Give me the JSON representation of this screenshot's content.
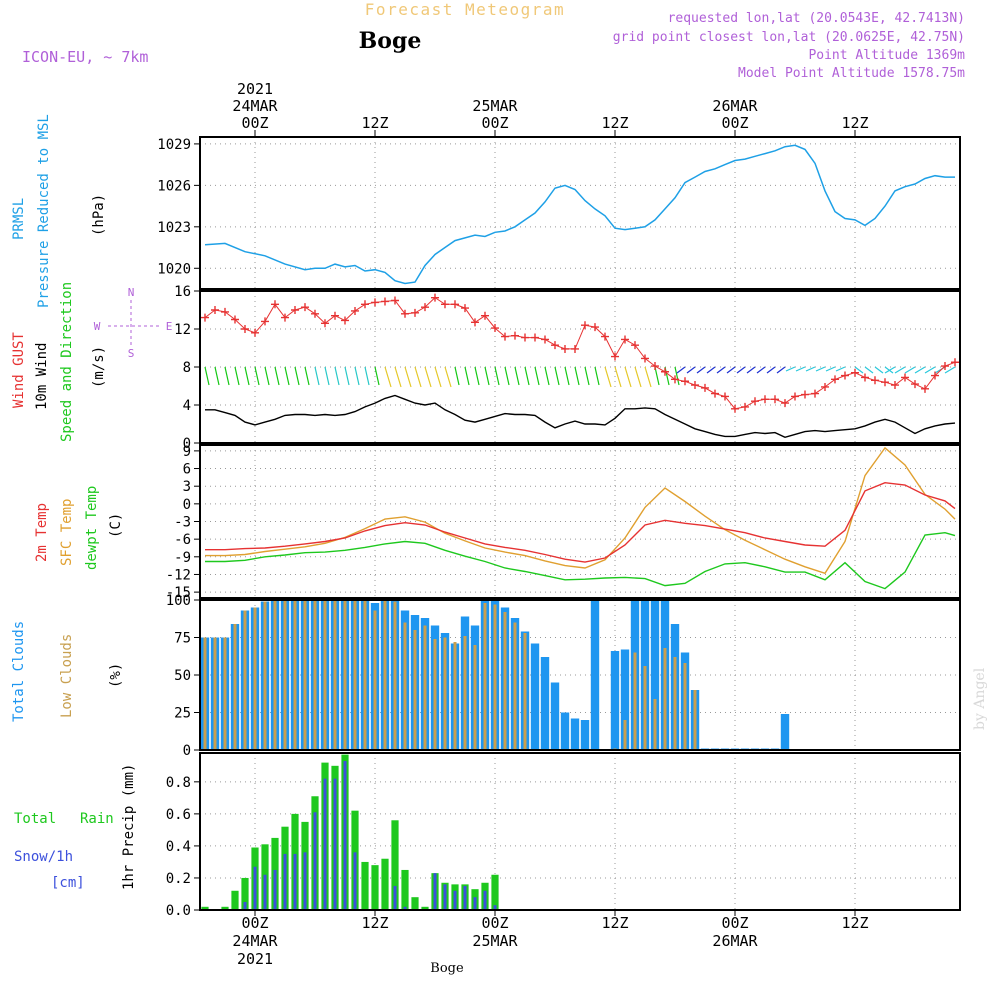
{
  "header": {
    "title": "Forecast Meteogram",
    "location": "Boge",
    "model": "ICON-EU, ~ 7km",
    "requested": "requested lon,lat (20.0543E, 42.7413N)",
    "grid_point": "grid point closest lon,lat (20.0625E, 42.75N)",
    "point_altitude": "Point Altitude 1369m",
    "model_altitude": "Model Point Altitude 1578.75m",
    "credit": "by Angel",
    "footer": "Boge"
  },
  "time_axis": {
    "top_labels": [
      {
        "lines": [
          "2021",
          "24MAR",
          "00Z"
        ],
        "t": 0
      },
      {
        "lines": [
          "12Z"
        ],
        "t": 12
      },
      {
        "lines": [
          "25MAR",
          "00Z"
        ],
        "t": 24
      },
      {
        "lines": [
          "12Z"
        ],
        "t": 36
      },
      {
        "lines": [
          "26MAR",
          "00Z"
        ],
        "t": 48
      },
      {
        "lines": [
          "12Z"
        ],
        "t": 60
      }
    ],
    "bottom_labels": [
      {
        "lines": [
          "00Z",
          "24MAR",
          "2021"
        ],
        "t": 0
      },
      {
        "lines": [
          "12Z"
        ],
        "t": 12
      },
      {
        "lines": [
          "00Z",
          "25MAR"
        ],
        "t": 24
      },
      {
        "lines": [
          "12Z"
        ],
        "t": 36
      },
      {
        "lines": [
          "00Z",
          "26MAR"
        ],
        "t": 48
      },
      {
        "lines": [
          "12Z"
        ],
        "t": 60
      }
    ],
    "t_start": -5.5,
    "t_end": 70.5
  },
  "labels": {
    "pressure": {
      "line1": "PRMSL",
      "line2": "Pressure Reduced to MSL",
      "unit": "(hPa)"
    },
    "wind": {
      "gust": "Wind GUST",
      "wind10": "10m Wind",
      "dir": "Speed and Direction",
      "unit": "(m/s)",
      "compass_n": "N",
      "compass_s": "S",
      "compass_w": "W",
      "compass_e": "E"
    },
    "temp": {
      "t2m": "2m Temp",
      "sfc": "SFC Temp",
      "dew": "dewpt Temp",
      "unit": "(C)"
    },
    "clouds": {
      "total": "Total Clouds",
      "low": "Low Clouds",
      "unit": "(%)"
    },
    "precip": {
      "rain1": "Total",
      "rain2": "Rain",
      "snow": "Snow/1h",
      "snow_unit": "[cm]",
      "ylabel": "1hr Precip (mm)"
    }
  },
  "colors": {
    "pressure": "#1ea0e6",
    "gust": "#e63232",
    "wind10": "#000000",
    "t2m": "#e63232",
    "sfc": "#e0a030",
    "dew": "#1ec81e",
    "total_cloud": "#1e96f0",
    "low_cloud": "#c8a050",
    "rain": "#1ec81e",
    "snow": "#3c50dc",
    "model": "#b060d8",
    "title": "#f0c878"
  },
  "chart_data": [
    {
      "type": "line",
      "name": "pressure",
      "ylabel": "(hPa)",
      "ylim": [
        1018.5,
        1029.5
      ],
      "yticks": [
        1020,
        1023,
        1026,
        1029
      ],
      "x": [
        -5,
        -3,
        -1,
        1,
        3,
        5,
        6,
        7,
        8,
        9,
        10,
        11,
        12,
        13,
        14,
        15,
        16,
        17,
        18,
        19,
        20,
        21,
        22,
        23,
        24,
        25,
        26,
        27,
        28,
        29,
        30,
        31,
        32,
        33,
        34,
        35,
        36,
        37,
        38,
        39,
        40,
        41,
        42,
        43,
        44,
        45,
        46,
        47,
        48,
        49,
        50,
        51,
        52,
        53,
        54,
        55,
        56,
        57,
        58,
        59,
        60,
        61,
        62,
        63,
        64,
        65,
        66,
        67,
        68,
        69,
        70
      ],
      "values": [
        1021.7,
        1021.8,
        1021.2,
        1020.9,
        1020.3,
        1019.9,
        1020.0,
        1020.0,
        1020.3,
        1020.1,
        1020.2,
        1019.8,
        1019.9,
        1019.7,
        1019.1,
        1018.9,
        1019.0,
        1020.2,
        1021.0,
        1021.5,
        1022.0,
        1022.2,
        1022.4,
        1022.3,
        1022.6,
        1022.7,
        1023.0,
        1023.5,
        1024.0,
        1024.8,
        1025.8,
        1026.0,
        1025.7,
        1024.9,
        1024.3,
        1023.8,
        1022.9,
        1022.8,
        1022.9,
        1023.0,
        1023.5,
        1024.3,
        1025.1,
        1026.2,
        1026.6,
        1027.0,
        1027.2,
        1027.5,
        1027.8,
        1027.9,
        1028.1,
        1028.3,
        1028.5,
        1028.8,
        1028.9,
        1028.6,
        1027.6,
        1025.6,
        1024.1,
        1023.6,
        1023.5,
        1023.1,
        1023.6,
        1024.5,
        1025.6,
        1025.9,
        1026.1,
        1026.5,
        1026.7,
        1026.6,
        1026.6
      ]
    },
    {
      "type": "line",
      "name": "wind",
      "ylabel": "(m/s)",
      "ylim": [
        0,
        16
      ],
      "yticks": [
        0,
        4,
        8,
        12,
        16
      ],
      "x": [
        -5,
        -4,
        -3,
        -2,
        -1,
        0,
        1,
        2,
        3,
        4,
        5,
        6,
        7,
        8,
        9,
        10,
        11,
        12,
        13,
        14,
        15,
        16,
        17,
        18,
        19,
        20,
        21,
        22,
        23,
        24,
        25,
        26,
        27,
        28,
        29,
        30,
        31,
        32,
        33,
        34,
        35,
        36,
        37,
        38,
        39,
        40,
        41,
        42,
        43,
        44,
        45,
        46,
        47,
        48,
        49,
        50,
        51,
        52,
        53,
        54,
        55,
        56,
        57,
        58,
        59,
        60,
        61,
        62,
        63,
        64,
        65,
        66,
        67,
        68,
        69,
        70
      ],
      "gust": [
        13.2,
        14.0,
        13.8,
        13.0,
        12.0,
        11.6,
        12.8,
        14.6,
        13.2,
        14.0,
        14.3,
        13.6,
        12.6,
        13.4,
        12.9,
        13.9,
        14.6,
        14.8,
        14.9,
        15.0,
        13.6,
        13.7,
        14.3,
        15.3,
        14.6,
        14.6,
        14.2,
        12.7,
        13.4,
        12.1,
        11.2,
        11.3,
        11.1,
        11.1,
        10.9,
        10.3,
        9.9,
        9.9,
        12.4,
        12.2,
        11.2,
        9.1,
        10.9,
        10.3,
        8.9,
        8.1,
        7.5,
        6.7,
        6.5,
        6.1,
        5.8,
        5.2,
        4.9,
        3.6,
        3.8,
        4.4,
        4.6,
        4.6,
        4.2,
        4.9,
        5.1,
        5.2,
        5.9,
        6.7,
        7.1,
        7.4,
        6.9,
        6.6,
        6.4,
        6.1,
        6.9,
        6.2,
        5.7,
        7.1,
        8.1,
        8.5
      ],
      "wind10": [
        3.5,
        3.5,
        3.2,
        2.9,
        2.2,
        1.9,
        2.2,
        2.5,
        2.9,
        3.0,
        3.0,
        2.9,
        3.0,
        2.9,
        3.0,
        3.3,
        3.8,
        4.2,
        4.7,
        5.0,
        4.6,
        4.2,
        4.0,
        4.2,
        3.5,
        3.0,
        2.4,
        2.2,
        2.5,
        2.8,
        3.1,
        3.0,
        3.0,
        2.9,
        2.2,
        1.6,
        2.0,
        2.3,
        2.0,
        2.0,
        1.9,
        2.6,
        3.6,
        3.6,
        3.7,
        3.6,
        3.0,
        2.5,
        2.0,
        1.5,
        1.2,
        0.9,
        0.7,
        0.7,
        0.9,
        1.1,
        1.0,
        1.1,
        0.6,
        0.9,
        1.2,
        1.3,
        1.2,
        1.3,
        1.4,
        1.5,
        1.8,
        2.2,
        2.5,
        2.2,
        1.6,
        1.0,
        1.5,
        1.8,
        2.0,
        2.1
      ]
    },
    {
      "type": "line",
      "name": "temperature",
      "ylabel": "(C)",
      "ylim": [
        -16,
        10
      ],
      "yticks": [
        -15,
        -12,
        -9,
        -6,
        -3,
        0,
        3,
        6,
        9
      ],
      "x": [
        -5,
        -3,
        -1,
        1,
        3,
        5,
        7,
        9,
        11,
        13,
        15,
        17,
        19,
        21,
        23,
        25,
        27,
        29,
        31,
        33,
        35,
        37,
        39,
        41,
        43,
        45,
        47,
        49,
        51,
        53,
        55,
        57,
        59,
        61,
        63,
        65,
        67,
        69,
        70
      ],
      "t2m": [
        -7.8,
        -7.8,
        -7.6,
        -7.5,
        -7.2,
        -6.8,
        -6.4,
        -5.8,
        -4.6,
        -3.7,
        -3.2,
        -3.6,
        -4.8,
        -5.8,
        -6.8,
        -7.4,
        -7.9,
        -8.6,
        -9.4,
        -9.9,
        -9.2,
        -7.0,
        -3.6,
        -2.8,
        -3.3,
        -3.7,
        -4.3,
        -4.9,
        -5.8,
        -6.4,
        -7.0,
        -7.2,
        -4.5,
        2.2,
        3.6,
        3.2,
        1.5,
        0.5,
        -0.8
      ],
      "sfc": [
        -8.8,
        -8.8,
        -8.6,
        -8.1,
        -7.7,
        -7.3,
        -6.7,
        -5.7,
        -4.2,
        -2.6,
        -2.2,
        -3.1,
        -5.0,
        -6.3,
        -7.5,
        -8.2,
        -8.8,
        -9.7,
        -10.5,
        -10.9,
        -9.5,
        -5.8,
        -0.6,
        2.7,
        0.4,
        -2.1,
        -4.4,
        -6.2,
        -7.8,
        -9.4,
        -10.7,
        -11.8,
        -6.4,
        4.8,
        9.5,
        6.6,
        1.6,
        -0.9,
        -2.6
      ],
      "dew": [
        -9.8,
        -9.8,
        -9.6,
        -9.0,
        -8.7,
        -8.3,
        -8.2,
        -7.9,
        -7.4,
        -6.8,
        -6.4,
        -6.7,
        -7.9,
        -8.9,
        -9.8,
        -10.9,
        -11.5,
        -12.2,
        -12.9,
        -12.8,
        -12.6,
        -12.5,
        -12.7,
        -13.9,
        -13.5,
        -11.5,
        -10.2,
        -10.0,
        -10.7,
        -11.6,
        -11.6,
        -12.9,
        -10.0,
        -13.2,
        -14.4,
        -11.6,
        -5.3,
        -4.9,
        -5.4
      ]
    },
    {
      "type": "bar",
      "name": "clouds",
      "ylabel": "(%)",
      "ylim": [
        0,
        100
      ],
      "yticks": [
        0,
        25,
        50,
        75,
        100
      ],
      "x": [
        -5,
        -4,
        -3,
        -2,
        -1,
        0,
        1,
        2,
        3,
        4,
        5,
        6,
        7,
        8,
        9,
        10,
        11,
        12,
        13,
        14,
        15,
        16,
        17,
        18,
        19,
        20,
        21,
        22,
        23,
        24,
        25,
        26,
        27,
        28,
        29,
        30,
        31,
        32,
        33,
        34,
        35,
        36,
        37,
        38,
        39,
        40,
        41,
        42,
        43,
        44,
        45,
        46,
        47,
        48,
        49,
        50,
        51,
        52,
        53,
        54,
        55,
        56,
        57,
        58,
        59,
        60,
        61,
        62,
        63,
        64,
        65,
        66,
        67,
        68,
        69,
        70
      ],
      "total": [
        75,
        75,
        75,
        84,
        93,
        95,
        99,
        100,
        100,
        100,
        100,
        100,
        100,
        100,
        100,
        100,
        100,
        98,
        100,
        100,
        93,
        90,
        88,
        83,
        78,
        71,
        89,
        83,
        100,
        100,
        95,
        88,
        79,
        71,
        62,
        45,
        25,
        21,
        20,
        100,
        0,
        66,
        67,
        100,
        100,
        100,
        100,
        84,
        65,
        40,
        1,
        1,
        1,
        1,
        1,
        1,
        1,
        1,
        24,
        0,
        0,
        0,
        0,
        0,
        0,
        0,
        0,
        0,
        0,
        0,
        0,
        0,
        0,
        0,
        0,
        0
      ],
      "low": [
        75,
        75,
        75,
        84,
        93,
        95,
        99,
        100,
        100,
        100,
        100,
        100,
        100,
        100,
        100,
        100,
        100,
        93,
        100,
        99,
        85,
        80,
        83,
        74,
        75,
        72,
        76,
        70,
        98,
        97,
        92,
        85,
        78,
        0,
        0,
        0,
        0,
        0,
        0,
        0,
        0,
        1,
        20,
        65,
        56,
        34,
        68,
        62,
        58,
        40,
        0,
        0,
        0,
        0,
        0,
        0,
        0,
        0,
        0,
        0,
        0,
        0,
        0,
        0,
        0,
        0,
        0,
        0,
        0,
        0,
        0,
        0,
        0,
        0,
        0,
        0
      ]
    },
    {
      "type": "bar",
      "name": "precip",
      "ylabel": "1hr Precip (mm)",
      "ylim": [
        0,
        0.98
      ],
      "yticks": [
        0,
        0.2,
        0.4,
        0.6,
        0.8
      ],
      "x": [
        -5,
        -4,
        -3,
        -2,
        -1,
        0,
        1,
        2,
        3,
        4,
        5,
        6,
        7,
        8,
        9,
        10,
        11,
        12,
        13,
        14,
        15,
        16,
        17,
        18,
        19,
        20,
        21,
        22,
        23,
        24,
        25,
        26,
        27,
        28,
        29,
        30,
        31,
        32,
        33,
        34,
        35,
        36,
        37,
        38,
        39,
        40,
        41,
        42,
        43,
        44,
        45,
        46,
        47,
        48,
        49,
        50,
        51,
        52,
        53,
        54,
        55,
        56,
        57,
        58,
        59,
        60,
        61,
        62,
        63,
        64,
        65,
        66,
        67,
        68,
        69,
        70
      ],
      "rain": [
        0.02,
        0,
        0.02,
        0.12,
        0.2,
        0.39,
        0.41,
        0.45,
        0.52,
        0.6,
        0.55,
        0.71,
        0.92,
        0.9,
        0.97,
        0.62,
        0.3,
        0.28,
        0.32,
        0.56,
        0.25,
        0.08,
        0.02,
        0.23,
        0.17,
        0.16,
        0.16,
        0.13,
        0.17,
        0.22,
        0,
        0,
        0,
        0,
        0,
        0,
        0,
        0,
        0,
        0,
        0,
        0,
        0,
        0,
        0,
        0,
        0,
        0,
        0,
        0,
        0,
        0,
        0,
        0,
        0,
        0,
        0,
        0,
        0,
        0,
        0,
        0,
        0,
        0,
        0,
        0,
        0,
        0,
        0,
        0,
        0,
        0,
        0,
        0,
        0,
        0
      ],
      "snow": [
        0,
        0,
        0,
        0,
        0.05,
        0.27,
        0.22,
        0.25,
        0.35,
        0.35,
        0.36,
        0.61,
        0.82,
        0.82,
        0.93,
        0.36,
        0,
        0,
        0,
        0.15,
        0.02,
        0,
        0,
        0.23,
        0.16,
        0.12,
        0.15,
        0.08,
        0.12,
        0.03,
        0,
        0,
        0,
        0,
        0,
        0,
        0,
        0,
        0,
        0,
        0,
        0,
        0,
        0,
        0,
        0,
        0,
        0,
        0,
        0,
        0,
        0,
        0,
        0,
        0,
        0,
        0,
        0,
        0,
        0,
        0,
        0,
        0,
        0,
        0,
        0,
        0,
        0,
        0,
        0,
        0,
        0,
        0,
        0,
        0,
        0
      ]
    }
  ]
}
